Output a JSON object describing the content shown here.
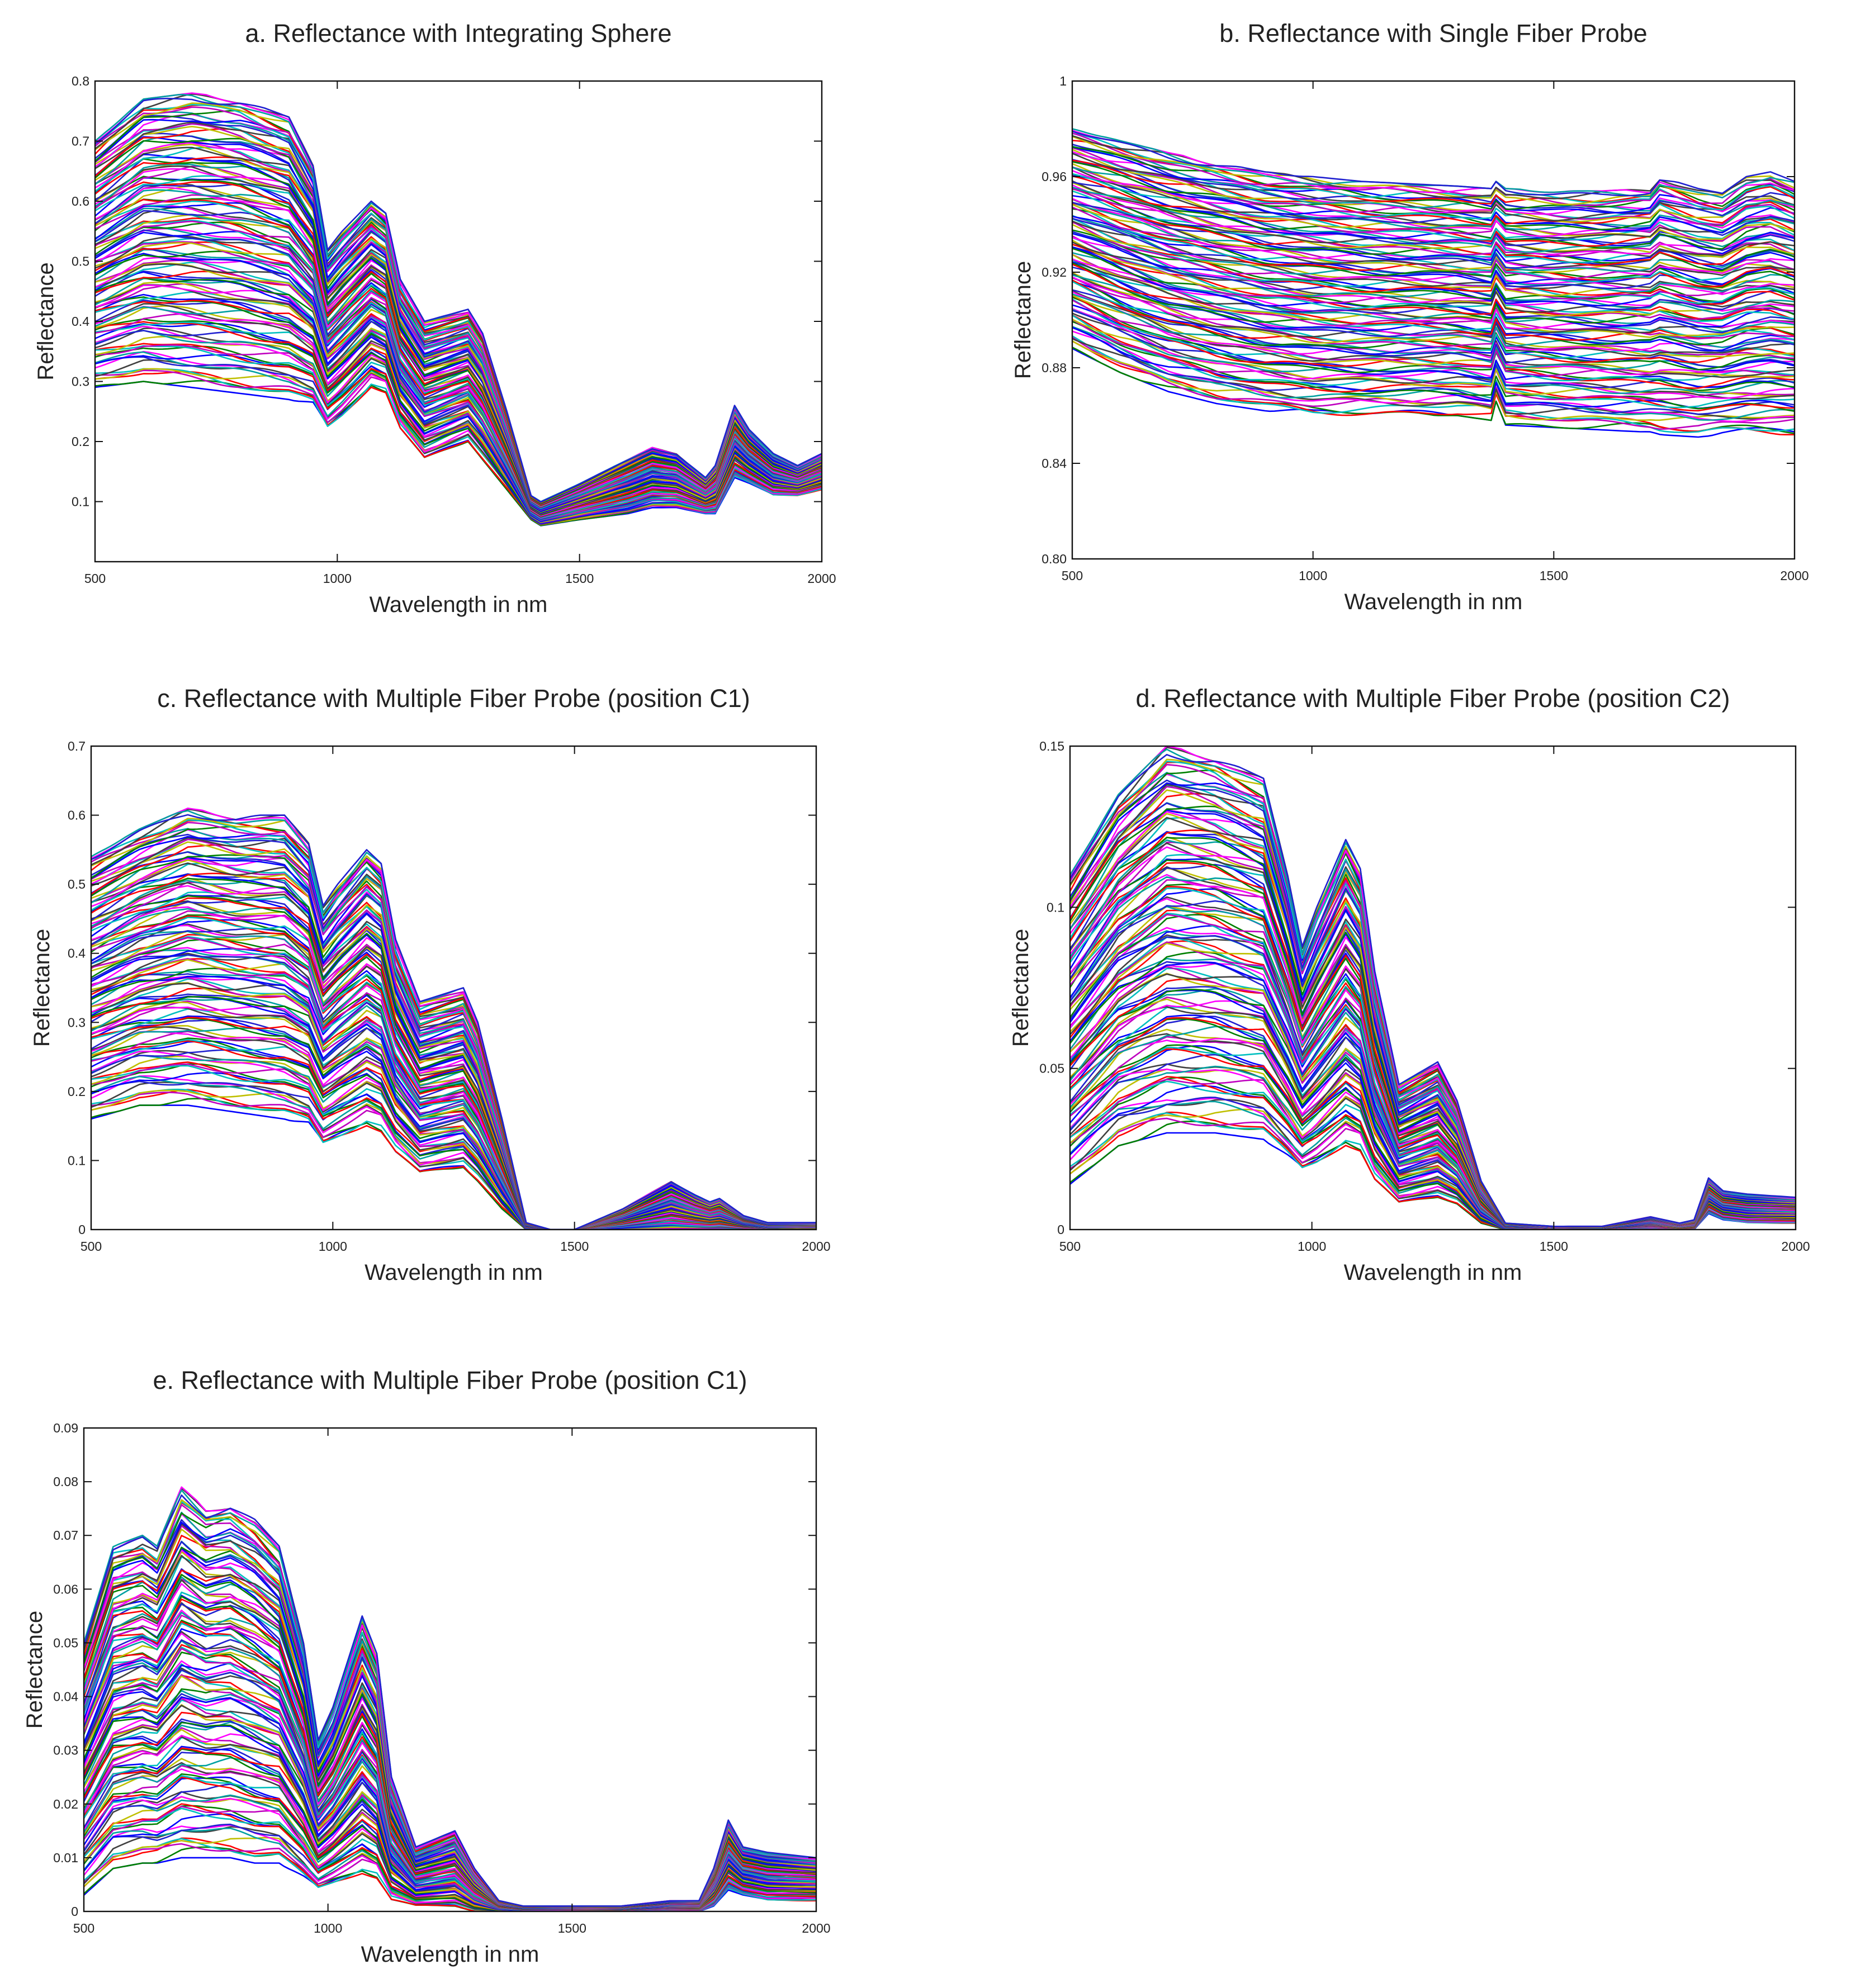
{
  "palette": [
    "#0000ff",
    "#008000",
    "#ff0000",
    "#00bfbf",
    "#bf00bf",
    "#bfbf00",
    "#404040",
    "#ff00ff",
    "#00a0a0",
    "#2020d0"
  ],
  "chart_data": [
    {
      "id": "a",
      "type": "line",
      "title": "a. Reflectance with Integrating Sphere",
      "xlabel": "Wavelength in nm",
      "ylabel": "Reflectance",
      "xlim": [
        500,
        2000
      ],
      "ylim": [
        0,
        0.8
      ],
      "xticks": [
        500,
        1000,
        1500,
        2000
      ],
      "yticks": [
        0.1,
        0.2,
        0.3,
        0.4,
        0.5,
        0.6,
        0.7,
        0.8
      ],
      "ytick_labels": [
        "0.1",
        "0.2",
        "0.3",
        "0.4",
        "0.5",
        "0.6",
        "0.7",
        "0.8"
      ],
      "series_count": 120,
      "profile_x": [
        500,
        600,
        700,
        800,
        900,
        950,
        980,
        1010,
        1070,
        1100,
        1130,
        1180,
        1270,
        1300,
        1350,
        1400,
        1420,
        1500,
        1600,
        1650,
        1700,
        1760,
        1780,
        1820,
        1850,
        1900,
        1950,
        2000
      ],
      "upper_envelope": [
        0.7,
        0.77,
        0.78,
        0.77,
        0.74,
        0.66,
        0.52,
        0.55,
        0.6,
        0.58,
        0.47,
        0.4,
        0.42,
        0.38,
        0.25,
        0.11,
        0.1,
        0.13,
        0.17,
        0.19,
        0.18,
        0.14,
        0.16,
        0.26,
        0.22,
        0.18,
        0.16,
        0.18
      ],
      "lower_envelope": [
        0.29,
        0.3,
        0.29,
        0.28,
        0.27,
        0.26,
        0.22,
        0.24,
        0.29,
        0.28,
        0.22,
        0.17,
        0.2,
        0.17,
        0.12,
        0.07,
        0.06,
        0.07,
        0.08,
        0.09,
        0.09,
        0.08,
        0.08,
        0.14,
        0.13,
        0.11,
        0.11,
        0.12
      ]
    },
    {
      "id": "b",
      "type": "line",
      "title": "b. Reflectance with Single Fiber Probe",
      "xlabel": "Wavelength in nm",
      "ylabel": "Reflectance",
      "xlim": [
        500,
        2000
      ],
      "ylim": [
        0.8,
        1.0
      ],
      "xticks": [
        500,
        1000,
        1500,
        2000
      ],
      "yticks": [
        0.8,
        0.84,
        0.88,
        0.92,
        0.96,
        1.0
      ],
      "ytick_labels": [
        "0.80",
        "0.84",
        "0.88",
        "0.92",
        "0.96",
        "1"
      ],
      "series_count": 120,
      "profile_x": [
        500,
        600,
        700,
        800,
        900,
        1000,
        1100,
        1200,
        1300,
        1370,
        1380,
        1400,
        1500,
        1600,
        1700,
        1720,
        1800,
        1850,
        1900,
        1950,
        2000
      ],
      "upper_envelope": [
        0.98,
        0.975,
        0.97,
        0.966,
        0.962,
        0.96,
        0.958,
        0.957,
        0.956,
        0.955,
        0.958,
        0.955,
        0.954,
        0.954,
        0.955,
        0.96,
        0.955,
        0.953,
        0.96,
        0.962,
        0.958
      ],
      "lower_envelope": [
        0.888,
        0.878,
        0.87,
        0.865,
        0.862,
        0.86,
        0.86,
        0.86,
        0.86,
        0.858,
        0.866,
        0.856,
        0.855,
        0.854,
        0.853,
        0.852,
        0.851,
        0.852,
        0.852,
        0.852,
        0.852
      ]
    },
    {
      "id": "c",
      "type": "line",
      "title": "c. Reflectance with Multiple Fiber Probe (position C1)",
      "xlabel": "Wavelength in nm",
      "ylabel": "Reflectance",
      "xlim": [
        500,
        2000
      ],
      "ylim": [
        0,
        0.7
      ],
      "xticks": [
        500,
        1000,
        1500,
        2000
      ],
      "yticks": [
        0,
        0.1,
        0.2,
        0.3,
        0.4,
        0.5,
        0.6,
        0.7
      ],
      "ytick_labels": [
        "0",
        "0.1",
        "0.2",
        "0.3",
        "0.4",
        "0.5",
        "0.6",
        "0.7"
      ],
      "series_count": 120,
      "profile_x": [
        500,
        600,
        700,
        800,
        900,
        950,
        980,
        1010,
        1070,
        1100,
        1130,
        1180,
        1270,
        1300,
        1350,
        1400,
        1450,
        1500,
        1600,
        1700,
        1750,
        1780,
        1800,
        1850,
        1900,
        2000
      ],
      "upper_envelope": [
        0.54,
        0.58,
        0.61,
        0.6,
        0.6,
        0.56,
        0.47,
        0.5,
        0.55,
        0.53,
        0.42,
        0.33,
        0.35,
        0.3,
        0.16,
        0.01,
        0.0,
        0.0,
        0.03,
        0.07,
        0.05,
        0.04,
        0.045,
        0.02,
        0.01,
        0.01
      ],
      "lower_envelope": [
        0.16,
        0.18,
        0.18,
        0.17,
        0.16,
        0.15,
        0.12,
        0.13,
        0.15,
        0.14,
        0.11,
        0.08,
        0.09,
        0.07,
        0.03,
        0.0,
        0.0,
        0.0,
        0.0,
        0.0,
        0.0,
        0.0,
        0.0,
        0.0,
        0.0,
        0.0
      ]
    },
    {
      "id": "d",
      "type": "line",
      "title": "d. Reflectance with Multiple Fiber Probe (position C2)",
      "xlabel": "Wavelength in nm",
      "ylabel": "Reflectance",
      "xlim": [
        500,
        2000
      ],
      "ylim": [
        0,
        0.15
      ],
      "xticks": [
        500,
        1000,
        1500,
        2000
      ],
      "yticks": [
        0,
        0.05,
        0.1,
        0.15
      ],
      "ytick_labels": [
        "0",
        "0.05",
        "0.1",
        "0.15"
      ],
      "series_count": 120,
      "profile_x": [
        500,
        600,
        700,
        800,
        900,
        950,
        980,
        1010,
        1070,
        1100,
        1130,
        1180,
        1260,
        1300,
        1350,
        1400,
        1500,
        1600,
        1700,
        1760,
        1790,
        1820,
        1850,
        1900,
        2000
      ],
      "upper_envelope": [
        0.11,
        0.135,
        0.15,
        0.147,
        0.14,
        0.11,
        0.088,
        0.1,
        0.121,
        0.112,
        0.08,
        0.045,
        0.052,
        0.04,
        0.015,
        0.002,
        0.001,
        0.001,
        0.004,
        0.002,
        0.003,
        0.016,
        0.012,
        0.011,
        0.01
      ],
      "lower_envelope": [
        0.014,
        0.026,
        0.03,
        0.03,
        0.028,
        0.022,
        0.018,
        0.02,
        0.026,
        0.024,
        0.015,
        0.008,
        0.01,
        0.008,
        0.002,
        0.0,
        0.0,
        0.0,
        0.0,
        0.0,
        0.0,
        0.005,
        0.003,
        0.002,
        0.002
      ]
    },
    {
      "id": "e",
      "type": "line",
      "title": "e. Reflectance with Multiple Fiber Probe (position C1)",
      "xlabel": "Wavelength in nm",
      "ylabel": "Reflectance",
      "xlim": [
        500,
        2000
      ],
      "ylim": [
        0,
        0.09
      ],
      "xticks": [
        500,
        1000,
        1500,
        2000
      ],
      "yticks": [
        0,
        0.01,
        0.02,
        0.03,
        0.04,
        0.05,
        0.06,
        0.07,
        0.08,
        0.09
      ],
      "ytick_labels": [
        "0",
        "0.01",
        "0.02",
        "0.03",
        "0.04",
        "0.05",
        "0.06",
        "0.07",
        "0.08",
        "0.09"
      ],
      "series_count": 120,
      "profile_x": [
        500,
        560,
        620,
        650,
        700,
        750,
        800,
        850,
        900,
        950,
        980,
        1010,
        1070,
        1100,
        1130,
        1180,
        1260,
        1300,
        1350,
        1400,
        1500,
        1600,
        1700,
        1760,
        1790,
        1820,
        1850,
        1900,
        2000
      ],
      "upper_envelope": [
        0.05,
        0.068,
        0.07,
        0.068,
        0.079,
        0.075,
        0.076,
        0.073,
        0.068,
        0.05,
        0.032,
        0.038,
        0.055,
        0.048,
        0.025,
        0.012,
        0.015,
        0.008,
        0.002,
        0.001,
        0.001,
        0.001,
        0.002,
        0.002,
        0.008,
        0.017,
        0.012,
        0.011,
        0.01
      ],
      "lower_envelope": [
        0.003,
        0.008,
        0.009,
        0.009,
        0.01,
        0.01,
        0.01,
        0.009,
        0.009,
        0.006,
        0.004,
        0.005,
        0.007,
        0.006,
        0.002,
        0.001,
        0.001,
        0.0,
        0.0,
        0.0,
        0.0,
        0.0,
        0.0,
        0.0,
        0.001,
        0.004,
        0.003,
        0.002,
        0.002
      ]
    }
  ]
}
